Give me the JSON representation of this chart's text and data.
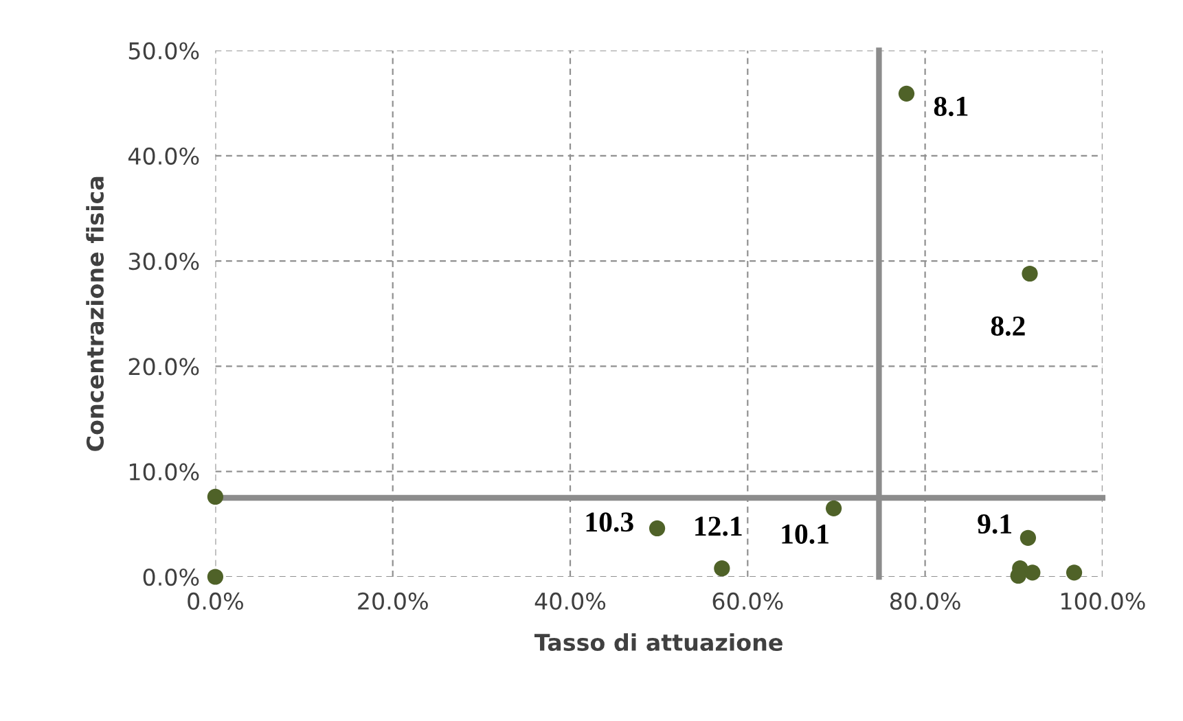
{
  "chart_data": {
    "type": "scatter",
    "xlabel": "Tasso di attuazione",
    "ylabel": "Concentrazione fisica",
    "x": [
      0,
      0,
      49.8,
      57.1,
      69.7,
      77.9,
      91.8,
      91.6,
      90.5,
      90.7,
      92.1,
      96.8
    ],
    "values": [
      7.6,
      0,
      4.6,
      0.8,
      6.5,
      45.9,
      28.8,
      3.7,
      0.1,
      0.8,
      0.4,
      0.4
    ],
    "color": "#4f6228",
    "marker": "circle",
    "xlim": [
      0,
      100
    ],
    "ylim": [
      0,
      50
    ],
    "xticks": [
      {
        "value": 0,
        "label": "0.0%"
      },
      {
        "value": 20,
        "label": "20.0%"
      },
      {
        "value": 40,
        "label": "40.0%"
      },
      {
        "value": 60,
        "label": "60.0%"
      },
      {
        "value": 80,
        "label": "80.0%"
      },
      {
        "value": 100,
        "label": "100.0%"
      }
    ],
    "yticks": [
      {
        "value": 0,
        "label": "0.0%"
      },
      {
        "value": 10,
        "label": "10.0%"
      },
      {
        "value": 20,
        "label": "20.0%"
      },
      {
        "value": 30,
        "label": "30.0%"
      },
      {
        "value": 40,
        "label": "40.0%"
      },
      {
        "value": 50,
        "label": "50.0%"
      }
    ],
    "grid": true,
    "ref_lines": [
      {
        "axis": "x",
        "value": 74.8,
        "color": "#8c8c8c"
      },
      {
        "axis": "y",
        "value": 7.5,
        "color": "#8c8c8c"
      }
    ],
    "annotations": [
      {
        "text": "8.1",
        "x": 77.9,
        "y": 45.9
      },
      {
        "text": "8.2",
        "x": 91.8,
        "y": 28.8
      },
      {
        "text": "9.1",
        "x": 91.6,
        "y": 3.7
      },
      {
        "text": "10.3",
        "x": 49.8,
        "y": 4.6
      },
      {
        "text": "12.1",
        "x": 57.1,
        "y": 0.8
      },
      {
        "text": "10.1",
        "x": 69.7,
        "y": 6.5
      }
    ]
  }
}
